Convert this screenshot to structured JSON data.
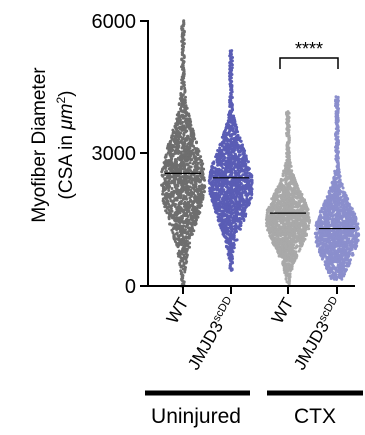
{
  "chart_data": {
    "type": "scatter",
    "subtype": "swarm-violin",
    "ylabel": "Myofiber Diameter",
    "ylabel2_prefix": "(CSA in ",
    "ylabel2_unit": "μm",
    "ylabel2_sup": "2",
    "ylabel2_suffix": ")",
    "ylim": [
      0,
      6000
    ],
    "yticks": [
      "0",
      "3000",
      "6000"
    ],
    "grid": false,
    "groups": [
      {
        "label_main": "WT",
        "label_sup": "",
        "color": "#6e6e6e",
        "min": 0,
        "max": 6000,
        "mean": 2550,
        "mode": 2350
      },
      {
        "label_main": "JMJD3",
        "label_sup": "scDD",
        "color": "#5a5db5",
        "min": 350,
        "max": 5350,
        "mean": 2450,
        "mode": 2300
      },
      {
        "label_main": "WT",
        "label_sup": "",
        "color": "#a9a9a9",
        "min": 50,
        "max": 3950,
        "mean": 1650,
        "mode": 1500
      },
      {
        "label_main": "JMJD3",
        "label_sup": "scDD",
        "color": "#8b8fcd",
        "min": 150,
        "max": 4300,
        "mean": 1300,
        "mode": 1200
      }
    ],
    "conditions": [
      {
        "label": "Uninjured"
      },
      {
        "label": "CTX"
      }
    ],
    "significance": {
      "text": "****"
    }
  }
}
